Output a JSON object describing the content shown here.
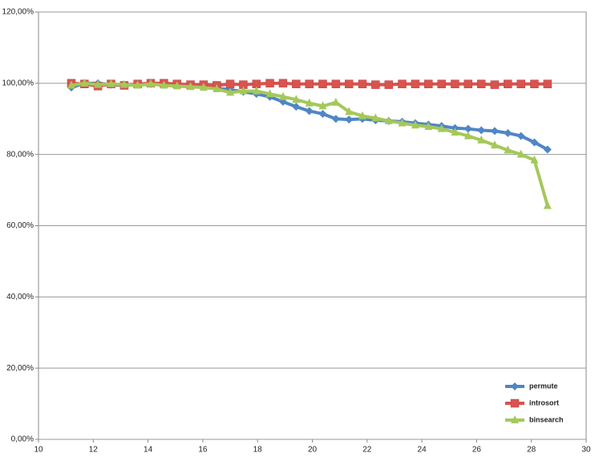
{
  "chart_data": {
    "type": "line",
    "x": [
      11.2,
      11.68,
      12.17,
      12.65,
      13.13,
      13.62,
      14.1,
      14.58,
      15.06,
      15.55,
      16.03,
      16.51,
      17.0,
      17.48,
      17.96,
      18.45,
      18.93,
      19.41,
      19.89,
      20.38,
      20.86,
      21.34,
      21.83,
      22.31,
      22.79,
      23.28,
      23.76,
      24.24,
      24.72,
      25.21,
      25.69,
      26.17,
      26.66,
      27.14,
      27.62,
      28.11,
      28.59
    ],
    "series": [
      {
        "name": "permute",
        "color": "#4f86c6",
        "marker": "diamond",
        "values": [
          98.8,
          100,
          100,
          99.6,
          99.4,
          99.6,
          99.8,
          99.6,
          99.4,
          99.2,
          99,
          98.6,
          98.2,
          97.6,
          97,
          96.2,
          94.8,
          93.4,
          92.2,
          91.4,
          90,
          89.8,
          90,
          89.6,
          89.4,
          89.2,
          88.8,
          88.4,
          88,
          87.4,
          87.2,
          86.8,
          86.6,
          86,
          85.2,
          83.4,
          81.4
        ]
      },
      {
        "name": "introsort",
        "color": "#d9534f",
        "marker": "square",
        "values": [
          100,
          99.8,
          99.2,
          99.8,
          99.4,
          99.8,
          100,
          100,
          99.8,
          99.6,
          99.6,
          99.4,
          99.8,
          99.6,
          99.8,
          100,
          100,
          99.8,
          99.8,
          99.8,
          99.8,
          99.8,
          99.8,
          99.6,
          99.6,
          99.8,
          99.8,
          99.8,
          99.8,
          99.8,
          99.8,
          99.8,
          99.6,
          99.8,
          99.8,
          99.8,
          99.8
        ]
      },
      {
        "name": "binsearch",
        "color": "#a5c85a",
        "marker": "triangle",
        "values": [
          99.4,
          100,
          99.6,
          99.8,
          99.6,
          99.4,
          99.8,
          99.4,
          99.2,
          99,
          98.8,
          98.4,
          97.4,
          97.8,
          97.8,
          97,
          96.2,
          95.4,
          94.4,
          93.6,
          94.6,
          92,
          90.8,
          90.2,
          89.4,
          88.8,
          88.2,
          87.8,
          87.2,
          86.2,
          85.2,
          84,
          82.6,
          81.2,
          80,
          78.4,
          65.6
        ]
      }
    ],
    "xlim": [
      10,
      30
    ],
    "xticks": [
      10,
      12,
      14,
      16,
      18,
      20,
      22,
      24,
      26,
      28,
      30
    ],
    "ylim": [
      0,
      120
    ],
    "yticks": [
      {
        "value": 0,
        "label": "0,00%"
      },
      {
        "value": 20,
        "label": "20,00%"
      },
      {
        "value": 40,
        "label": "40,00%"
      },
      {
        "value": 60,
        "label": "60,00%"
      },
      {
        "value": 80,
        "label": "80,00%"
      },
      {
        "value": 100,
        "label": "100,00%"
      },
      {
        "value": 120,
        "label": "120,00%"
      }
    ],
    "grid": true,
    "legend": "lower-right"
  }
}
